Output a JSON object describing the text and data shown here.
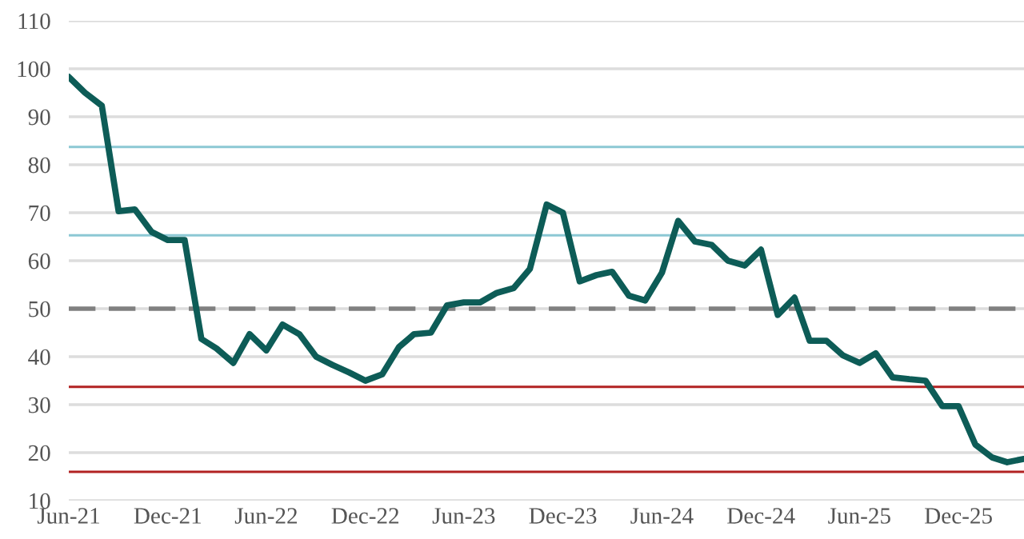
{
  "chart_data": {
    "type": "line",
    "x": [
      "2021-06",
      "2021-07",
      "2021-08",
      "2021-09",
      "2021-10",
      "2021-11",
      "2021-12",
      "2022-01",
      "2022-02",
      "2022-03",
      "2022-04",
      "2022-05",
      "2022-06",
      "2022-07",
      "2022-08",
      "2022-09",
      "2022-10",
      "2022-11",
      "2022-12",
      "2023-01",
      "2023-02",
      "2023-03",
      "2023-04",
      "2023-05",
      "2023-06",
      "2023-07",
      "2023-08",
      "2023-09",
      "2023-10",
      "2023-11",
      "2023-12",
      "2024-01",
      "2024-02",
      "2024-03",
      "2024-04",
      "2024-05",
      "2024-06",
      "2024-07",
      "2024-08",
      "2024-09",
      "2024-10",
      "2024-11",
      "2024-12",
      "2025-01",
      "2025-02",
      "2025-03",
      "2025-04",
      "2025-05",
      "2025-06",
      "2025-07",
      "2025-08",
      "2025-09",
      "2025-10",
      "2025-11",
      "2025-12",
      "2026-01",
      "2026-02",
      "2026-03",
      "2026-04"
    ],
    "series": [
      {
        "color": "#0d5c57",
        "values": [
          98.3,
          95,
          92.3,
          70.3,
          70.7,
          66,
          64.3,
          64.3,
          43.7,
          41.7,
          38.7,
          44.7,
          41.3,
          46.7,
          44.7,
          40,
          38.3,
          36.7,
          35,
          36.3,
          42,
          44.7,
          45,
          50.7,
          51.3,
          51.3,
          53.3,
          54.3,
          58.3,
          71.7,
          70,
          55.7,
          57,
          57.7,
          52.7,
          51.7,
          57.5,
          68.3,
          64,
          63.3,
          60,
          59,
          62.3,
          48.7,
          52.3,
          43.3,
          43.3,
          40.3,
          38.7,
          40.7,
          35.7,
          35.3,
          35,
          29.7,
          29.7,
          21.7,
          19,
          18,
          18.7
        ]
      }
    ],
    "xlim": [
      "2021-06",
      "2026-04"
    ],
    "xticks": [
      {
        "value": "2021-06",
        "label": "Jun-21"
      },
      {
        "value": "2021-12",
        "label": "Dec-21"
      },
      {
        "value": "2022-06",
        "label": "Jun-22"
      },
      {
        "value": "2022-12",
        "label": "Dec-22"
      },
      {
        "value": "2023-06",
        "label": "Jun-23"
      },
      {
        "value": "2023-12",
        "label": "Dec-23"
      },
      {
        "value": "2024-06",
        "label": "Jun-24"
      },
      {
        "value": "2024-12",
        "label": "Dec-24"
      },
      {
        "value": "2025-06",
        "label": "Jun-25"
      },
      {
        "value": "2025-12",
        "label": "Dec-25"
      }
    ],
    "ylim": [
      10,
      110
    ],
    "yticks": [
      10,
      20,
      30,
      40,
      50,
      60,
      70,
      80,
      90,
      100,
      110
    ],
    "grid": "y",
    "line_style": "solid",
    "ref_lines": [
      {
        "axis": "y",
        "value": 83.7,
        "color": "#8cc8d4",
        "line_style": "solid"
      },
      {
        "axis": "y",
        "value": 65.3,
        "color": "#8cc8d4",
        "line_style": "solid"
      },
      {
        "axis": "y",
        "value": 50,
        "color": "#808080",
        "line_style": "dashed"
      },
      {
        "axis": "y",
        "value": 33.7,
        "color": "#b22222",
        "line_style": "solid"
      },
      {
        "axis": "y",
        "value": 16,
        "color": "#b22222",
        "line_style": "solid"
      }
    ]
  }
}
